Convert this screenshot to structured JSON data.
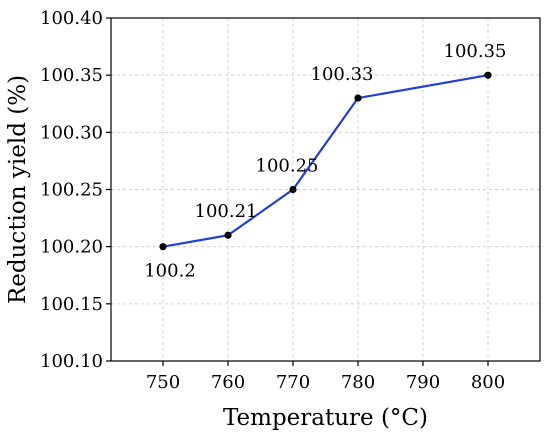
{
  "chart_data": {
    "type": "line",
    "title": "",
    "xlabel": "Temperature (°C)",
    "ylabel": "Reduction yield (%)",
    "x": [
      750,
      760,
      770,
      780,
      790,
      800
    ],
    "x_tick_labels": [
      "750",
      "760",
      "770",
      "780",
      "790",
      "800"
    ],
    "y_tick_labels": [
      "100.10",
      "100.15",
      "100.20",
      "100.25",
      "100.30",
      "100.35",
      "100.40"
    ],
    "xlim": [
      742,
      808
    ],
    "ylim": [
      100.1,
      100.4
    ],
    "grid": true,
    "series": [
      {
        "color": "#1f3fd6",
        "marker_color": "#000000",
        "points": [
          {
            "x": 750,
            "y": 100.2,
            "label": "100.2"
          },
          {
            "x": 760,
            "y": 100.21,
            "label": "100.21"
          },
          {
            "x": 770,
            "y": 100.25,
            "label": "100.25"
          },
          {
            "x": 780,
            "y": 100.33,
            "label": "100.33"
          },
          {
            "x": 800,
            "y": 100.35,
            "label": "100.35"
          }
        ]
      }
    ]
  }
}
